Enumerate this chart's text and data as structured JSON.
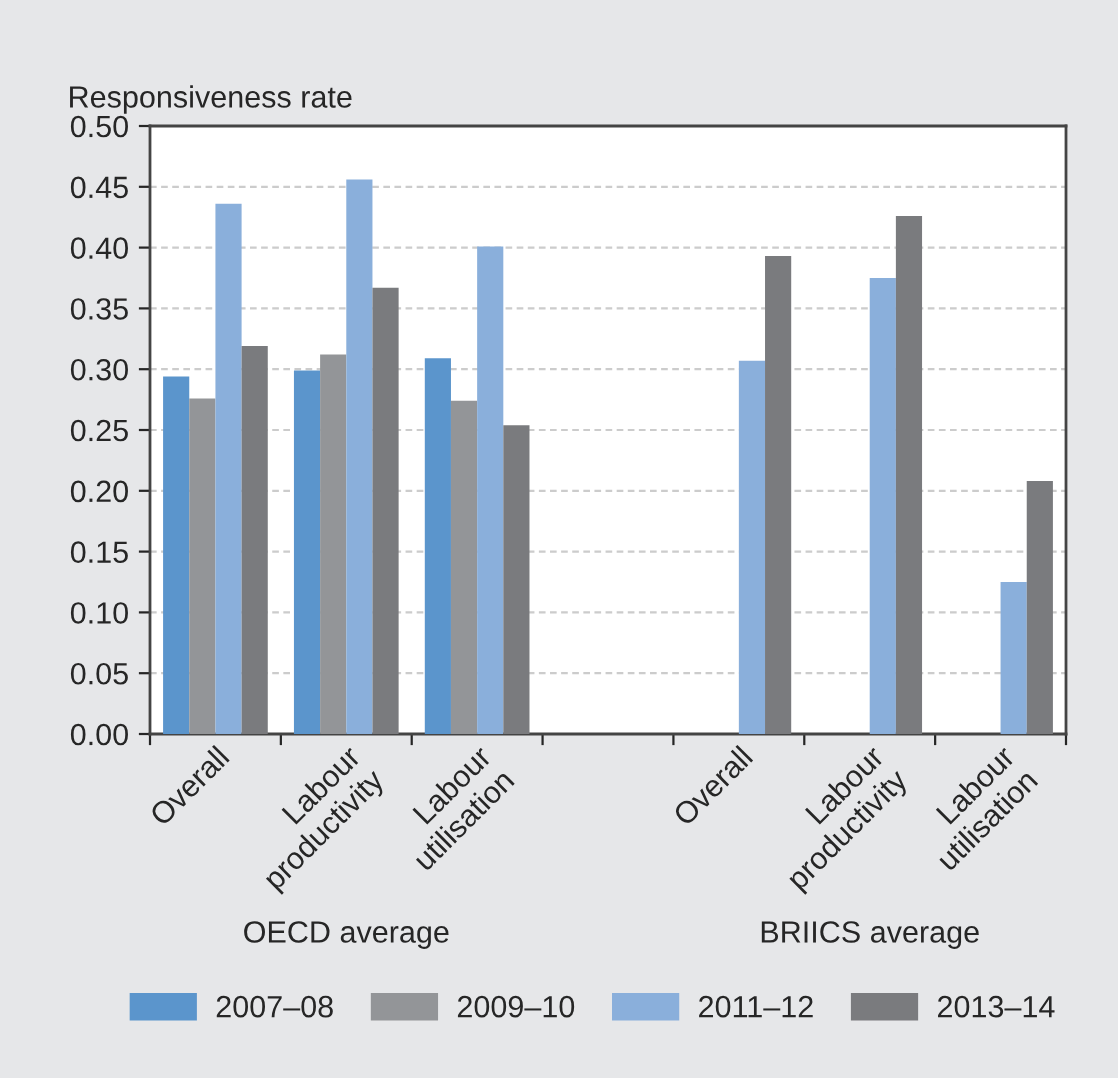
{
  "chart_data": {
    "type": "bar",
    "ylabel": "Responsiveness rate",
    "categories": [
      "Overall",
      "Labour\nproductivity",
      "Labour\nutilisation",
      null,
      "Overall",
      "Labour\nproductivity",
      "Labour\nutilisation"
    ],
    "series": [
      {
        "name": "2007–08",
        "color": "#5b95cc",
        "values": [
          0.294,
          0.299,
          0.309,
          null,
          null,
          null,
          null
        ]
      },
      {
        "name": "2009–10",
        "color": "#939598",
        "values": [
          0.276,
          0.312,
          0.274,
          null,
          null,
          null,
          null
        ]
      },
      {
        "name": "2011–12",
        "color": "#8aafdb",
        "values": [
          0.436,
          0.456,
          0.401,
          null,
          0.307,
          0.375,
          0.125
        ]
      },
      {
        "name": "2013–14",
        "color": "#7a7b7e",
        "values": [
          0.319,
          0.367,
          0.254,
          null,
          0.393,
          0.426,
          0.208
        ]
      }
    ],
    "ylim": [
      0,
      0.5
    ],
    "yticks": [
      {
        "value": 0,
        "label": "0.00"
      },
      {
        "value": 0.05,
        "label": "0.05"
      },
      {
        "value": 0.1,
        "label": "0.10"
      },
      {
        "value": 0.15,
        "label": "0.15"
      },
      {
        "value": 0.2,
        "label": "0.20"
      },
      {
        "value": 0.25,
        "label": "0.25"
      },
      {
        "value": 0.3,
        "label": "0.30"
      },
      {
        "value": 0.35,
        "label": "0.35"
      },
      {
        "value": 0.4,
        "label": "0.40"
      },
      {
        "value": 0.45,
        "label": "0.45"
      },
      {
        "value": 0.5,
        "label": "0.50"
      }
    ],
    "grid": "y",
    "legend": "bottom",
    "annotations": [
      "OECD average",
      "BRIICS average"
    ]
  }
}
